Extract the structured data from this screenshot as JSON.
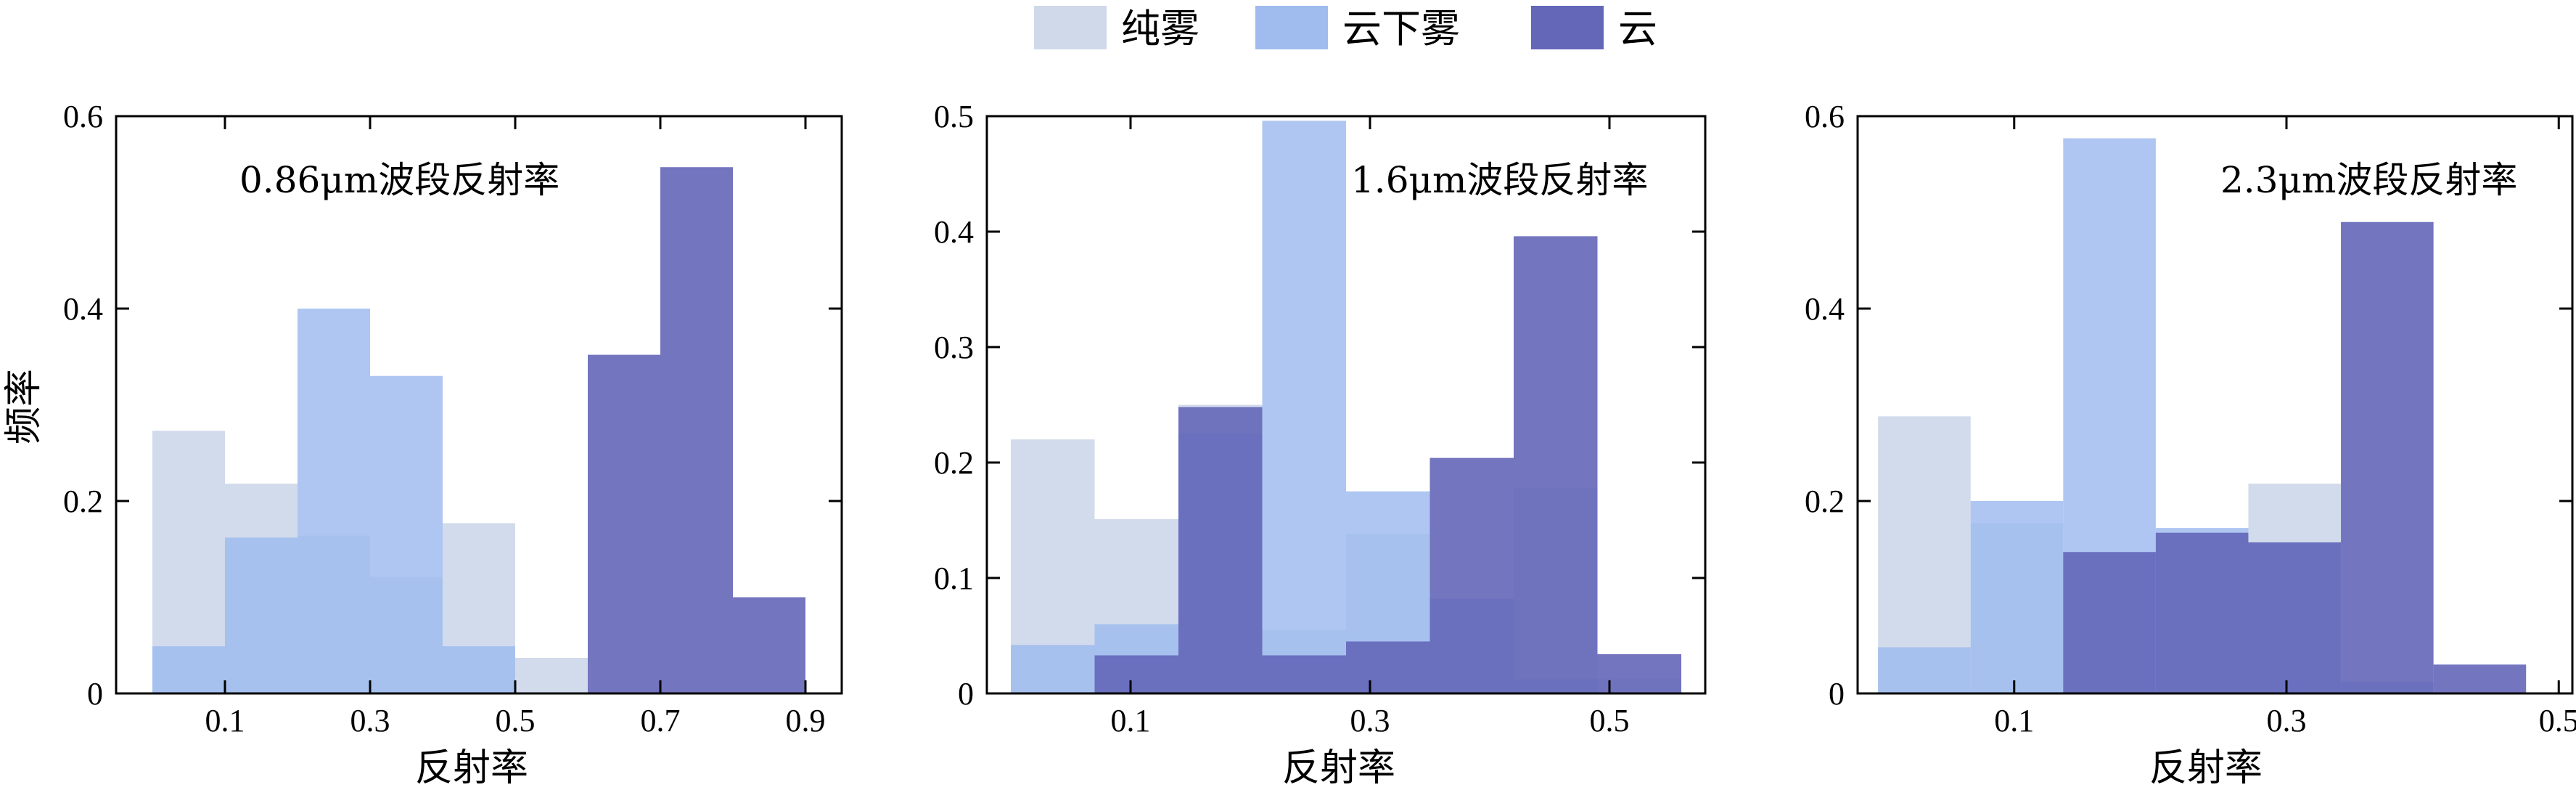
{
  "legend": {
    "items": [
      {
        "label": "纯雾",
        "color": "#cfd9ea"
      },
      {
        "label": "云下雾",
        "color": "#a0bcee"
      },
      {
        "label": "云",
        "color": "#6466b8"
      }
    ]
  },
  "overlap_colors": {
    "fog_under_cloud": "#8aa9e8",
    "fog_under_cloud_cloud": "#3545aa",
    "fog_cloud": "#5459b0"
  },
  "chart_data": [
    {
      "type": "bar",
      "title": "0.86μm波段反射率",
      "xlabel": "反射率",
      "ylabel": "频率",
      "xlim": [
        -0.05,
        0.95
      ],
      "ylim": [
        0,
        0.6
      ],
      "xticks": [
        0.1,
        0.3,
        0.5,
        0.7,
        0.9
      ],
      "xtick_labels": [
        "0.1",
        "0.3",
        "0.5",
        "0.7",
        "0.9"
      ],
      "yticks": [
        0,
        0.2,
        0.4,
        0.6
      ],
      "ytick_labels": [
        "0",
        "0.2",
        "0.4",
        "0.6"
      ],
      "bin_edges": [
        0.0,
        0.1,
        0.2,
        0.3,
        0.4,
        0.5,
        0.6,
        0.7,
        0.8,
        0.9
      ],
      "series": [
        {
          "name": "纯雾",
          "values": [
            0.273,
            0.218,
            0.164,
            0.121,
            0.177,
            0.037,
            0,
            0,
            0
          ]
        },
        {
          "name": "云下雾",
          "values": [
            0.049,
            0.162,
            0.4,
            0.33,
            0.049,
            0,
            0,
            0,
            0
          ]
        },
        {
          "name": "云",
          "values": [
            0,
            0,
            0,
            0,
            0,
            0,
            0.352,
            0.547,
            0.1
          ]
        }
      ]
    },
    {
      "type": "bar",
      "title": "1.6μm波段反射率",
      "xlabel": "反射率",
      "ylabel": "",
      "xlim": [
        -0.02,
        0.58
      ],
      "ylim": [
        0,
        0.5
      ],
      "xticks": [
        0.1,
        0.3,
        0.5
      ],
      "xtick_labels": [
        "0.1",
        "0.3",
        "0.5"
      ],
      "yticks": [
        0,
        0.1,
        0.2,
        0.3,
        0.4,
        0.5
      ],
      "ytick_labels": [
        "0",
        "0.1",
        "0.2",
        "0.3",
        "0.4",
        "0.5"
      ],
      "bin_edges": [
        0.0,
        0.07,
        0.14,
        0.21,
        0.28,
        0.35,
        0.42,
        0.49,
        0.56
      ],
      "series": [
        {
          "name": "纯雾",
          "values": [
            0.22,
            0.151,
            0.25,
            0.055,
            0.138,
            0.082,
            0.178,
            0.013
          ]
        },
        {
          "name": "云下雾",
          "values": [
            0.042,
            0.06,
            0.225,
            0.496,
            0.175,
            0.082,
            0.012,
            0
          ]
        },
        {
          "name": "云",
          "values": [
            0,
            0.033,
            0.248,
            0.033,
            0.045,
            0.204,
            0.396,
            0.034
          ]
        }
      ]
    },
    {
      "type": "bar",
      "title": "2.3μm波段反射率",
      "xlabel": "反射率",
      "ylabel": "",
      "xlim": [
        -0.015,
        0.51
      ],
      "ylim": [
        0,
        0.6
      ],
      "xticks": [
        0.1,
        0.3,
        0.5
      ],
      "xtick_labels": [
        "0.1",
        "0.3",
        "0.5"
      ],
      "yticks": [
        0,
        0.2,
        0.4,
        0.6
      ],
      "ytick_labels": [
        "0",
        "0.2",
        "0.4",
        "0.6"
      ],
      "bin_edges": [
        0.0,
        0.068,
        0.136,
        0.204,
        0.272,
        0.34,
        0.408,
        0.476
      ],
      "series": [
        {
          "name": "纯雾",
          "values": [
            0.288,
            0.177,
            0.147,
            0.167,
            0.218,
            0.012,
            0
          ]
        },
        {
          "name": "云下雾",
          "values": [
            0.048,
            0.2,
            0.577,
            0.172,
            0.157,
            0.012,
            0
          ]
        },
        {
          "name": "云",
          "values": [
            0,
            0,
            0.147,
            0.167,
            0.157,
            0.49,
            0.03
          ]
        }
      ]
    }
  ]
}
